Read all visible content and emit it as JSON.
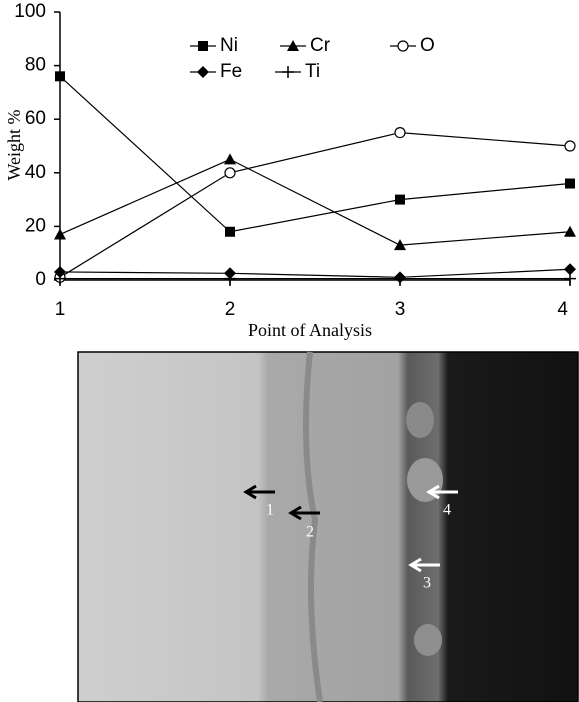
{
  "chart_data": {
    "type": "line",
    "x_label": "Point of Analysis",
    "y_label": "Weight %",
    "x": [
      1,
      2,
      3,
      4
    ],
    "xlim": [
      1,
      4
    ],
    "xticks": [
      1,
      2,
      3,
      4
    ],
    "ylim": [
      0,
      100
    ],
    "yticks": [
      0,
      20,
      40,
      60,
      80,
      100
    ],
    "grid": false,
    "series": [
      {
        "name": "Ni",
        "color": "#000000",
        "marker": "square",
        "values": [
          76,
          18,
          30,
          36
        ]
      },
      {
        "name": "Cr",
        "color": "#000000",
        "marker": "triangle",
        "values": [
          17,
          45,
          13,
          18
        ]
      },
      {
        "name": "O",
        "color": "#000000",
        "marker": "circle",
        "values": [
          1,
          40,
          55,
          50
        ]
      },
      {
        "name": "Fe",
        "color": "#000000",
        "marker": "diamond",
        "values": [
          3,
          2.5,
          1,
          4
        ]
      },
      {
        "name": "Ti",
        "color": "#000000",
        "marker": "plus",
        "values": [
          0.5,
          0.5,
          0.5,
          0.5
        ]
      }
    ]
  },
  "micrograph": {
    "labels": [
      "1",
      "2",
      "3",
      "4"
    ]
  }
}
